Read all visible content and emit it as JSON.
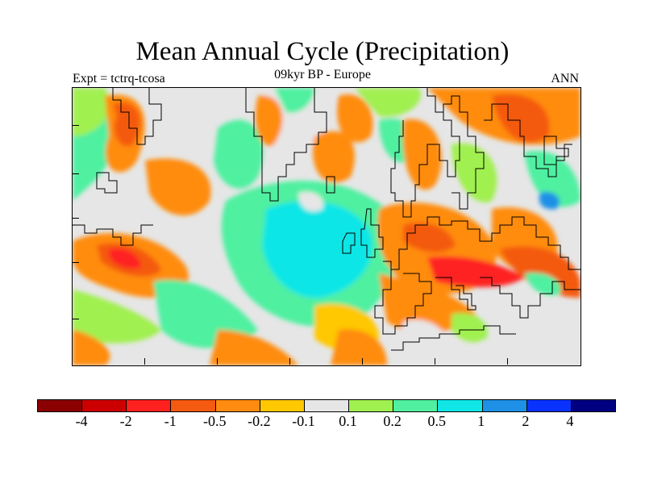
{
  "title": "Mean Annual Cycle (Precipitation)",
  "subtitle_left": "Expt = tctrq-tcosa",
  "subtitle_center": "09kyr BP - Europe",
  "subtitle_right": "ANN",
  "map": {
    "region": "Europe",
    "field": "Precipitation anomaly"
  },
  "colorbar": {
    "colors": [
      "#8b0000",
      "#cc0000",
      "#ff2020",
      "#f45a10",
      "#ff8c10",
      "#ffc800",
      "#e6e6e6",
      "#a0f050",
      "#50f0a0",
      "#10e6e6",
      "#1e90e6",
      "#0a32ff",
      "#000080"
    ],
    "labels": [
      "-4",
      "-2",
      "-1",
      "-0.5",
      "-0.2",
      "-0.1",
      "0.1",
      "0.2",
      "0.5",
      "1",
      "2",
      "4"
    ]
  }
}
